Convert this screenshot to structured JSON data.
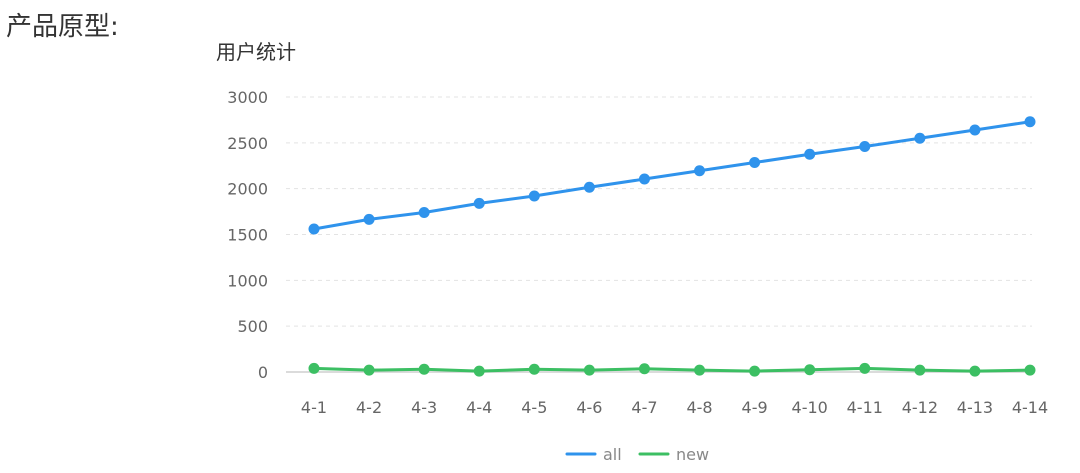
{
  "page": {
    "heading": "产品原型:"
  },
  "chart_data": {
    "type": "line",
    "title": "用户统计",
    "xlabel": "",
    "ylabel": "",
    "categories": [
      "4-1",
      "4-2",
      "4-3",
      "4-4",
      "4-5",
      "4-6",
      "4-7",
      "4-8",
      "4-9",
      "4-10",
      "4-11",
      "4-12",
      "4-13",
      "4-14"
    ],
    "ylim": [
      0,
      3000
    ],
    "yticks": [
      0,
      500,
      1000,
      1500,
      2000,
      2500,
      3000
    ],
    "grid": true,
    "legend_position": "bottom",
    "series": [
      {
        "name": "all",
        "color": "#2f93ec",
        "values": [
          1560,
          1665,
          1740,
          1840,
          1920,
          2015,
          2105,
          2195,
          2285,
          2375,
          2460,
          2550,
          2640,
          2730
        ]
      },
      {
        "name": "new",
        "color": "#3cbf63",
        "values": [
          40,
          20,
          30,
          10,
          30,
          20,
          35,
          20,
          10,
          25,
          40,
          20,
          10,
          20
        ]
      }
    ]
  }
}
